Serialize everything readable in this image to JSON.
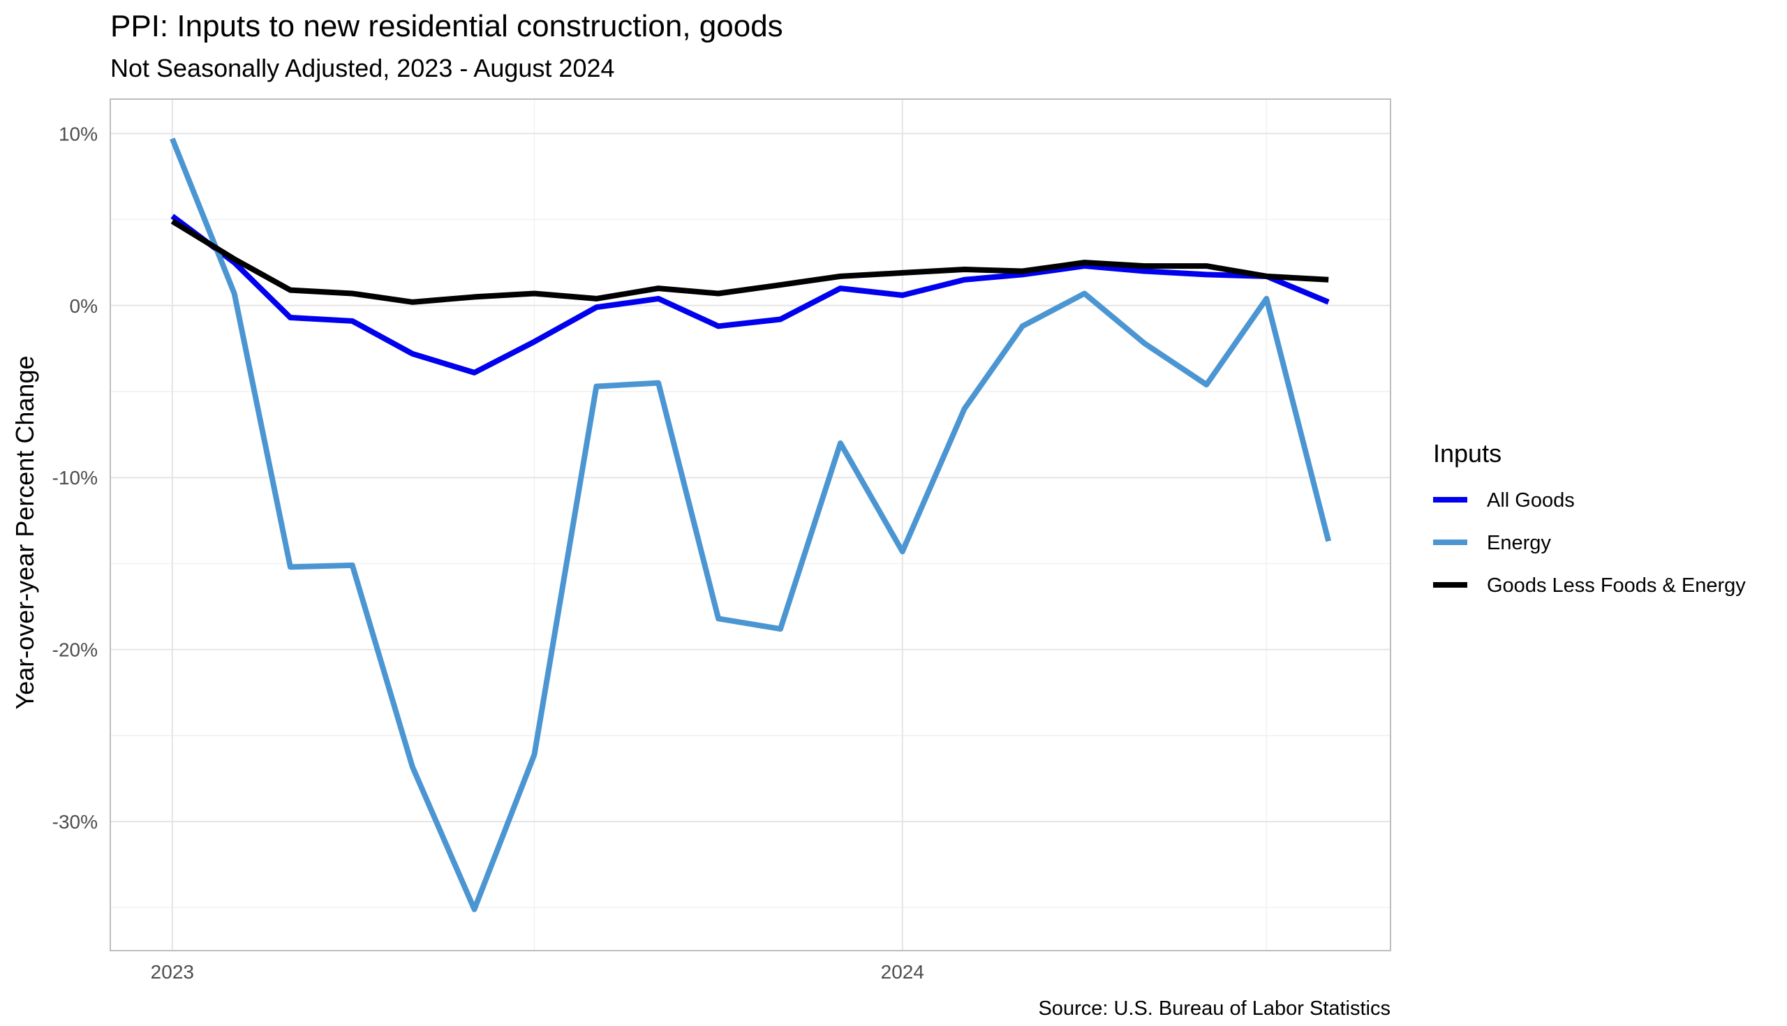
{
  "chart_data": {
    "type": "line",
    "title": "PPI: Inputs to new residential construction, goods",
    "subtitle": "Not Seasonally Adjusted, 2023 - August 2024",
    "xlabel": "",
    "ylabel": "Year-over-year Percent Change",
    "caption": "Source: U.S. Bureau of Labor Statistics",
    "x": [
      "2023-01-01",
      "2023-02-01",
      "2023-03-01",
      "2023-04-01",
      "2023-05-01",
      "2023-06-01",
      "2023-07-01",
      "2023-08-01",
      "2023-09-01",
      "2023-10-01",
      "2023-11-01",
      "2023-12-01",
      "2024-01-01",
      "2024-02-01",
      "2024-03-01",
      "2024-04-01",
      "2024-05-01",
      "2024-06-01",
      "2024-07-01",
      "2024-08-01"
    ],
    "x_ticks": [
      {
        "date": "2023-01-01",
        "label": "2023"
      },
      {
        "date": "2024-01-01",
        "label": "2024"
      }
    ],
    "x_minor_ticks": [
      "2023-07-01",
      "2024-07-01"
    ],
    "xlim": [
      "2022-12-01",
      "2024-09-01"
    ],
    "ylim": [
      -37.5,
      12
    ],
    "y_ticks": [
      {
        "value": 10,
        "label": "10%"
      },
      {
        "value": 0,
        "label": "0%"
      },
      {
        "value": -10,
        "label": "-10%"
      },
      {
        "value": -20,
        "label": "-20%"
      },
      {
        "value": -30,
        "label": "-30%"
      }
    ],
    "y_minor_ticks": [
      5,
      -5,
      -15,
      -25,
      -35
    ],
    "grid": true,
    "legend": {
      "title": "Inputs",
      "placement": "right"
    },
    "series": [
      {
        "name": "All Goods",
        "color": "#0000ee",
        "values": [
          5.2,
          2.5,
          -0.7,
          -0.9,
          -2.8,
          -3.9,
          -2.1,
          -0.1,
          0.4,
          -1.2,
          -0.8,
          1.0,
          0.6,
          1.5,
          1.8,
          2.3,
          2.0,
          1.8,
          1.7,
          0.2
        ]
      },
      {
        "name": "Energy",
        "color": "#4b96d2",
        "values": [
          9.7,
          0.7,
          -15.2,
          -15.1,
          -26.8,
          -35.1,
          -26.1,
          -4.7,
          -4.5,
          -18.2,
          -18.8,
          -8.0,
          -14.3,
          -6.0,
          -1.2,
          0.7,
          -2.2,
          -4.6,
          0.4,
          -13.7
        ]
      },
      {
        "name": "Goods Less Foods & Energy",
        "color": "#000000",
        "values": [
          4.9,
          2.7,
          0.9,
          0.7,
          0.2,
          0.5,
          0.7,
          0.4,
          1.0,
          0.7,
          1.2,
          1.7,
          1.9,
          2.1,
          2.0,
          2.5,
          2.3,
          2.3,
          1.7,
          1.5
        ]
      }
    ]
  }
}
